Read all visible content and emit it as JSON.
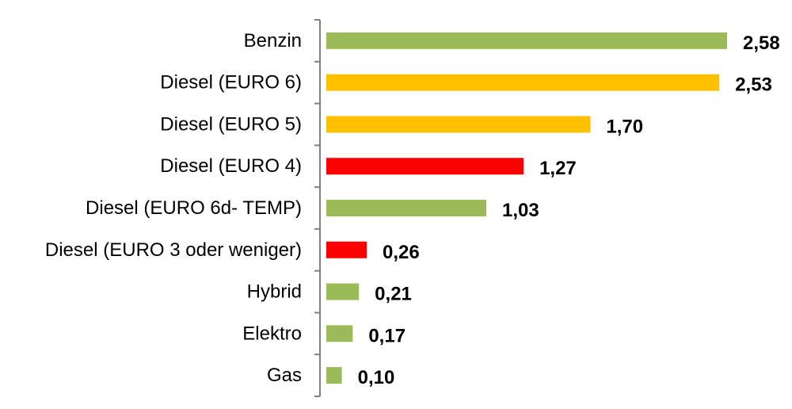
{
  "chart_data": {
    "type": "bar",
    "orientation": "horizontal",
    "categories": [
      "Benzin",
      "Diesel (EURO 6)",
      "Diesel (EURO 5)",
      "Diesel (EURO 4)",
      "Diesel (EURO 6d- TEMP)",
      "Diesel (EURO 3 oder weniger)",
      "Hybrid",
      "Elektro",
      "Gas"
    ],
    "values": [
      2.58,
      2.53,
      1.7,
      1.27,
      1.03,
      0.26,
      0.21,
      0.17,
      0.1
    ],
    "value_labels": [
      "2,58",
      "2,53",
      "1,70",
      "1,27",
      "1,03",
      "0,26",
      "0,21",
      "0,17",
      "0,10"
    ],
    "bar_colors": [
      "#9bbb59",
      "#ffc000",
      "#ffc000",
      "#ff0000",
      "#9bbb59",
      "#ff0000",
      "#9bbb59",
      "#9bbb59",
      "#9bbb59"
    ],
    "xlim": [
      0,
      2.58
    ],
    "grid": false,
    "legend": "none"
  }
}
